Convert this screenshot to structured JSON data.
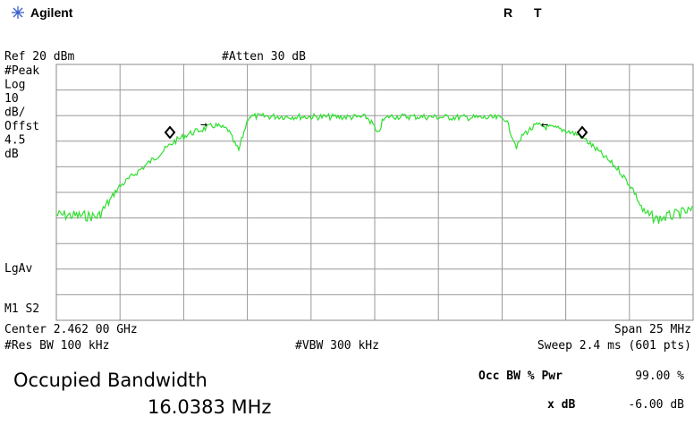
{
  "header": {
    "brand": "Agilent",
    "status": [
      "R",
      "T"
    ]
  },
  "top": {
    "ref": "Ref 20 dBm",
    "atten": "#Atten 30 dB"
  },
  "left_labels": [
    "#Peak",
    "Log",
    "10",
    "dB/",
    "Offst",
    "4.5",
    "dB"
  ],
  "detector": "LgAv",
  "marker_mode": "M1 S2",
  "bottom": {
    "center": "Center 2.462 00 GHz",
    "span": "Span 25 MHz",
    "rbw": "#Res BW 100 kHz",
    "vbw": "#VBW 300 kHz",
    "sweep": "Sweep 2.4 ms (601 pts)"
  },
  "result": {
    "title": "Occupied Bandwidth",
    "value": "16.0383 MHz",
    "params": [
      {
        "label": "Occ BW % Pwr",
        "value": "99.00 %"
      },
      {
        "label": "x dB",
        "value": "-6.00 dB"
      }
    ]
  },
  "markers": {
    "left_arrow_right": "→",
    "right_arrow_left": "←"
  }
}
